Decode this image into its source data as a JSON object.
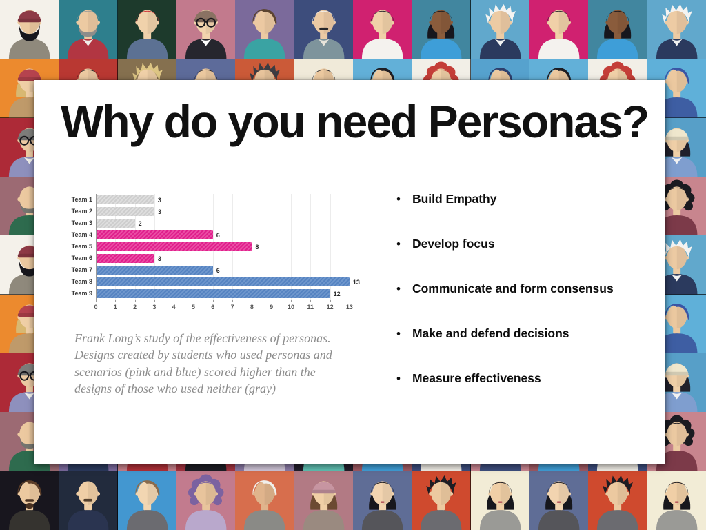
{
  "slide": {
    "title": "Why do you need Personas?",
    "bullet_char": "•",
    "bullets": [
      "Build Empathy",
      "Develop focus",
      "Communicate and form consensus",
      "Make and defend decisions",
      "Measure effectiveness"
    ],
    "caption": "Frank Long’s study of the effectiveness of personas.\nDesigns created by students who used personas and\nscenarios (pink and blue) scored higher than the\ndesigns of those who used neither (gray)",
    "colors": {
      "card_bg": "#ffffff",
      "title_text": "#111111",
      "bullet_text": "#0d0d0d",
      "caption_text": "#8c8c8c"
    }
  },
  "chart_data": {
    "type": "bar",
    "orientation": "horizontal",
    "title": "",
    "xlabel": "",
    "ylabel": "",
    "categories": [
      "Team 1",
      "Team 2",
      "Team 3",
      "Team 4",
      "Team 5",
      "Team 6",
      "Team 7",
      "Team 8",
      "Team 9"
    ],
    "values": [
      3,
      3,
      2,
      6,
      8,
      3,
      6,
      13,
      12
    ],
    "groups": [
      "gray",
      "gray",
      "gray",
      "pink",
      "pink",
      "pink",
      "blue",
      "blue",
      "blue"
    ],
    "group_meaning": {
      "gray": "used neither personas nor scenarios",
      "pink": "used personas and scenarios",
      "blue": "used personas and scenarios"
    },
    "bar_palette": {
      "gray": {
        "base": "#cdcdcd",
        "stripe": "#dedede"
      },
      "pink": {
        "base": "#e01f8c",
        "stripe": "#ea4da4"
      },
      "blue": {
        "base": "#5583c1",
        "stripe": "#6f97cd"
      }
    },
    "xlim": [
      0,
      13
    ],
    "x_ticks": [
      0,
      1,
      2,
      3,
      4,
      5,
      6,
      7,
      8,
      9,
      10,
      11,
      12,
      13
    ],
    "value_labels": true,
    "grid": true,
    "gridline_color": "#ececec",
    "axis_color": "#9a9a9a",
    "legend": "none"
  },
  "background": {
    "description": "mosaic of flat-design persona avatars",
    "avatar_specs": {
      "A": {
        "bg": "#f4f1ea",
        "skin": "#ecc9a0",
        "shirt": "#8f897c",
        "hair": "#20202a",
        "style": "beanie",
        "hat": "#8e3a46",
        "beard": "full",
        "beardColor": "#17171d"
      },
      "B": {
        "bg": "#2e7f8d",
        "skin": "#eccaa2",
        "shirt": "#b23642",
        "collar": "#f0efe9",
        "hair": "#9a9a98",
        "style": "short",
        "beard": "trim",
        "beardColor": "#8d8d8b"
      },
      "C": {
        "bg": "#1d3a2c",
        "skin": "#f0d2ab",
        "shirt": "#5c7193",
        "hair": "#ce2f35",
        "style": "short"
      },
      "D": {
        "bg": "#c27a8d",
        "skin": "#f2d4ae",
        "shirt": "#26262e",
        "collar": "#ffffff",
        "hair": "#3c2c22",
        "style": "beanie",
        "hat": "#8a7263",
        "glasses": true
      },
      "E": {
        "bg": "#7b6a9b",
        "skin": "#ecc9a2",
        "shirt": "#3aa3a3",
        "hair": "#5c4430",
        "style": "swept"
      },
      "F": {
        "bg": "#3d4d7c",
        "skin": "#eccaa4",
        "shirt": "#7e949c",
        "collar": "#e8e4da",
        "hair": "#f1efec",
        "style": "short",
        "mustache": "#26262a"
      },
      "G": {
        "bg": "#d02170",
        "skin": "#f0d0a8",
        "shirt": "#f4f2ee",
        "hair": "#26262c",
        "style": "short"
      },
      "H": {
        "bg": "#41869f",
        "skin": "#8a5c3c",
        "shirt": "#3e9ed8",
        "hair": "#17171d",
        "style": "bob"
      },
      "I": {
        "bg": "#61a8cc",
        "skin": "#edcba4",
        "shirt": "#2b3a5e",
        "collar": "#f2f2f2",
        "hair": "#f4f3f1",
        "style": "spiky"
      },
      "J": {
        "bg": "#ec8a2e",
        "skin": "#f0cfa6",
        "shirt": "#bf9a6a",
        "hair": "#d8b872",
        "style": "beanie",
        "hat": "#b5434e",
        "sideHair": true
      },
      "K": {
        "bg": "#b93832",
        "skin": "#eccaa2",
        "shirt": "#8d3b40",
        "hair": "#1c1c22",
        "style": "bob"
      },
      "L": {
        "bg": "#85704f",
        "skin": "#f0d0a8",
        "shirt": "#8a8a80",
        "hair": "#ddc584",
        "style": "spiky"
      },
      "M": {
        "bg": "#5d6b9a",
        "skin": "#ecc9a0",
        "shirt": "#474b55",
        "hair": "#20202a",
        "style": "short"
      },
      "N": {
        "bg": "#cb5a38",
        "skin": "#e8c49c",
        "shirt": "#5a5a5e",
        "hair": "#3c3c42",
        "style": "spiky"
      },
      "O": {
        "bg": "#f0ead9",
        "skin": "#ecc9a0",
        "shirt": "#6b6b70",
        "hair": "#1e1e24",
        "style": "short"
      },
      "P": {
        "bg": "#62b0d8",
        "skin": "#ecc9a0",
        "shirt": "#4a4a52",
        "hair": "#1d1d23",
        "style": "swept"
      },
      "Q": {
        "bg": "#f2efe7",
        "skin": "#f0d0a8",
        "shirt": "#8a8a86",
        "hair": "#c43e38",
        "style": "curly"
      },
      "R": {
        "bg": "#56a2ce",
        "skin": "#ecc9a0",
        "shirt": "#47608f",
        "hair": "#2d3f6d",
        "style": "swept"
      },
      "S": {
        "bg": "#ad2a37",
        "skin": "#eccaa2",
        "shirt": "#8e90bd",
        "collar": "#f0efe9",
        "hair": "#4a4a4e",
        "style": "beanie",
        "hat": "#7d7d7b",
        "glasses": true
      },
      "T": {
        "bg": "#9c6a73",
        "skin": "#ecc9a0",
        "shirt": "#2e6b4e",
        "style": "bald",
        "beard": "trim",
        "beardColor": "#75756f"
      },
      "U": {
        "bg": "#5fb0d9",
        "skin": "#ecc9a0",
        "shirt": "#3e5ea3",
        "hair": "#3a55a5",
        "style": "swept"
      },
      "V": {
        "bg": "#579fc8",
        "skin": "#f0d0a8",
        "shirt": "#7f9ecf",
        "collar": "#f2f2f2",
        "hair": "#20202a",
        "style": "beanie",
        "hat": "#efe7cd",
        "sideHair": true
      },
      "W": {
        "bg": "#c8858e",
        "skin": "#eccaa2",
        "shirt": "#7c3a49",
        "hair": "#1b1b21",
        "style": "curly"
      },
      "X": {
        "bg": "#7b6a9e",
        "skin": "#ecc9a0",
        "shirt": "#2c3a5e",
        "collar": "#f2f2f2",
        "hair": "#20202a",
        "style": "short"
      },
      "Y": {
        "bg": "#c7808a",
        "skin": "#f0d0a8",
        "shirt": "#b03038",
        "collar": "#ffffff",
        "hair": "#2a2a30",
        "style": "short"
      },
      "Z": {
        "bg": "#a43440",
        "skin": "#ecc9a0",
        "shirt": "#1d1d24",
        "hair": "#b5313a",
        "style": "bob"
      },
      "AA": {
        "bg": "#8a7aa5",
        "skin": "#ecc9a0",
        "shirt": "#cfc5d8",
        "hair": "#5f4734",
        "style": "bob"
      },
      "AB": {
        "bg": "#221e2b",
        "skin": "#e8c49c",
        "shirt": "#5fc0b2",
        "hair": "#17171d",
        "style": "curly",
        "beard": "full",
        "beardColor": "#15151b"
      },
      "AC": {
        "bg": "#a05a63",
        "skin": "#e8c49c",
        "shirt": "#3f9fd8",
        "collar": "#ffffff",
        "hair": "#3c3028",
        "style": "short"
      },
      "AD": {
        "bg": "#3c4d7d",
        "skin": "#c89070",
        "shirt": "#f0ede6",
        "hair": "#5a4434",
        "style": "short",
        "mustache": "#4a3628"
      },
      "AE": {
        "bg": "#ca8591",
        "skin": "#f0d0a8",
        "shirt": "#3e4e7e",
        "collar": "#efe8d6",
        "hair": "#3a3231",
        "style": "bob"
      },
      "BA": {
        "bg": "#18161e",
        "skin": "#ecc9a0",
        "shirt": "#35332f",
        "hair": "#5b3d28",
        "style": "swept",
        "beard": "goatee",
        "beardColor": "#4a3222"
      },
      "BB": {
        "bg": "#222b3d",
        "skin": "#f0cfa6",
        "shirt": "#2a3450",
        "style": "bald",
        "mustache": "#55402c"
      },
      "BC": {
        "bg": "#4397d0",
        "skin": "#f2d6b2",
        "shirt": "#6b6b70",
        "hair": "#8a6b4c",
        "style": "swept"
      },
      "BD": {
        "bg": "#c27b8e",
        "skin": "#e8c49c",
        "shirt": "#b9a8cc",
        "hair": "#7b62a0",
        "style": "curly"
      },
      "BE": {
        "bg": "#d76e4d",
        "skin": "#e0b48c",
        "shirt": "#8a8a86",
        "hair": "#f0efeb",
        "style": "swept"
      },
      "BF": {
        "bg": "#b27a84",
        "skin": "#f0cfa6",
        "shirt": "#9a8a80",
        "hair": "#6b4a32",
        "style": "beanie",
        "hat": "#c795a1",
        "sideHair": true
      },
      "BG": {
        "bg": "#5f6d96",
        "skin": "#f2d4b0",
        "shirt": "#55555a",
        "hair": "#17171d",
        "style": "bob",
        "lips": "#b04a55"
      },
      "BH": {
        "bg": "#cf4a2e",
        "skin": "#ecc9a0",
        "shirt": "#6b6b70",
        "hair": "#1d1d23",
        "style": "spiky"
      },
      "BI": {
        "bg": "#f2ecd6",
        "skin": "#f0cfa6",
        "shirt": "#9a9a96",
        "hair": "#17171d",
        "style": "bob",
        "lips": "#b04a55"
      }
    },
    "grid": [
      [
        "A",
        "B",
        "C",
        "D",
        "E",
        "F",
        "G",
        "H",
        "I",
        "G",
        "H",
        "I"
      ],
      [
        "J",
        "K",
        "L",
        "M",
        "N",
        "O",
        "P",
        "Q",
        "R",
        "P",
        "Q",
        "U"
      ],
      [
        "S",
        "K",
        "L",
        "M",
        "N",
        "O",
        "P",
        "Q",
        "R",
        "P",
        "Q",
        "V"
      ],
      [
        "T",
        "B",
        "C",
        "D",
        "E",
        "F",
        "G",
        "H",
        "I",
        "G",
        "H",
        "W"
      ],
      [
        "A",
        "B",
        "C",
        "D",
        "E",
        "F",
        "G",
        "H",
        "I",
        "G",
        "H",
        "I"
      ],
      [
        "J",
        "K",
        "L",
        "M",
        "N",
        "O",
        "P",
        "Q",
        "R",
        "P",
        "Q",
        "U"
      ],
      [
        "S",
        "K",
        "L",
        "M",
        "N",
        "O",
        "P",
        "Q",
        "R",
        "P",
        "Q",
        "V"
      ],
      [
        "T",
        "X",
        "Y",
        "Z",
        "AA",
        "AB",
        "AC",
        "AD",
        "AE",
        "AC",
        "AD",
        "W"
      ],
      [
        "BA",
        "BB",
        "BC",
        "BD",
        "BE",
        "BF",
        "BG",
        "BH",
        "BI",
        "BG",
        "BH",
        "BI"
      ]
    ]
  }
}
